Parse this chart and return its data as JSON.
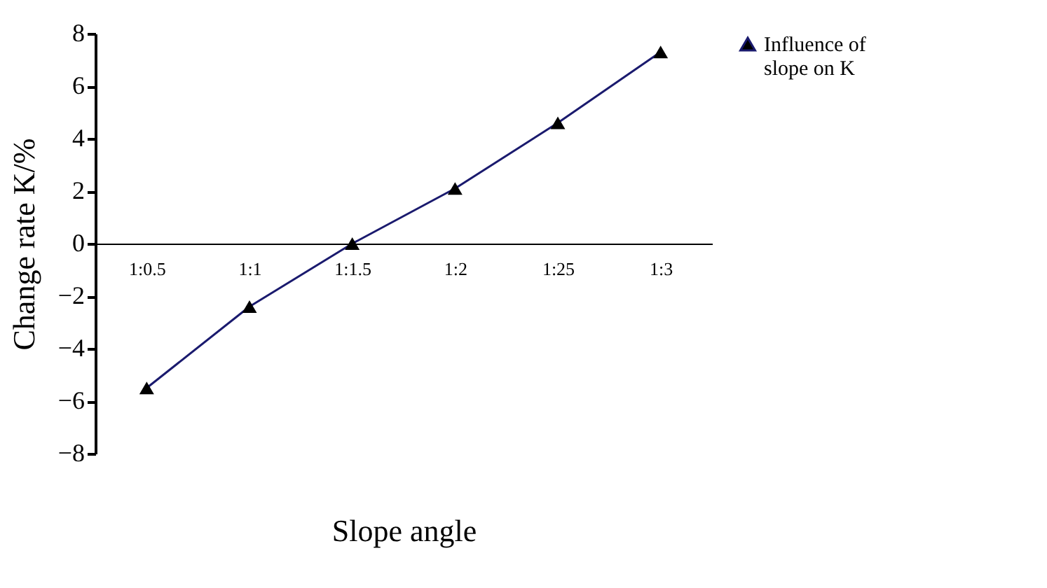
{
  "chart_data": {
    "type": "line",
    "xlabel": "Slope angle",
    "ylabel": "Change rate K/%",
    "categories": [
      "1:0.5",
      "1:1",
      "1:1.5",
      "1:2",
      "1:25",
      "1:3"
    ],
    "series": [
      {
        "name": "Influence of slope on K",
        "color": "#1a1a6e",
        "values": [
          -5.5,
          -2.4,
          0,
          2.1,
          4.6,
          7.3
        ]
      }
    ],
    "ylim": [
      -8,
      8
    ],
    "yticks": [
      -8,
      -6,
      -4,
      -2,
      0,
      2,
      4,
      6,
      8
    ],
    "marker": "triangle",
    "line_style": "solid",
    "grid": false,
    "legend": "right"
  }
}
